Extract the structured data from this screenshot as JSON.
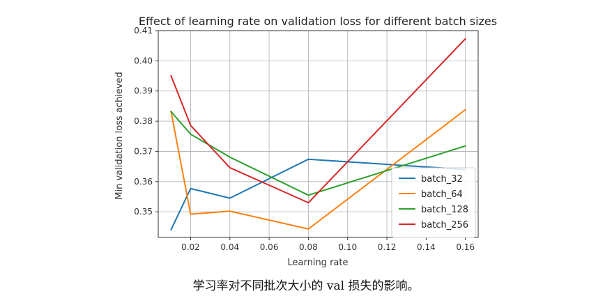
{
  "chart_data": {
    "type": "line",
    "title": "Effect of learning rate on validation loss for different batch sizes",
    "xlabel": "Learning rate",
    "ylabel": "Min validation loss achieved",
    "x": [
      0.01,
      0.02,
      0.04,
      0.08,
      0.16
    ],
    "xlim": [
      0.0035,
      0.1665
    ],
    "ylim": [
      0.3415,
      0.41
    ],
    "xticks": [
      0.02,
      0.04,
      0.06,
      0.08,
      0.1,
      0.12,
      0.14,
      0.16
    ],
    "xtick_labels": [
      "0.02",
      "0.04",
      "0.06",
      "0.08",
      "0.10",
      "0.12",
      "0.14",
      "0.16"
    ],
    "yticks": [
      0.35,
      0.36,
      0.37,
      0.38,
      0.39,
      0.4,
      0.41
    ],
    "ytick_labels": [
      "0.35",
      "0.36",
      "0.37",
      "0.38",
      "0.39",
      "0.40",
      "0.41"
    ],
    "grid": true,
    "legend_position": "lower-right",
    "series": [
      {
        "name": "batch_32",
        "color": "#1f77b4",
        "values": [
          0.344,
          0.3577,
          0.3545,
          0.3674,
          0.364
        ]
      },
      {
        "name": "batch_64",
        "color": "#ff7f0e",
        "values": [
          0.3833,
          0.3492,
          0.3502,
          0.3443,
          0.3838
        ]
      },
      {
        "name": "batch_128",
        "color": "#2ca02c",
        "values": [
          0.3832,
          0.3757,
          0.3681,
          0.3555,
          0.3718
        ]
      },
      {
        "name": "batch_256",
        "color": "#d62728",
        "values": [
          0.3951,
          0.3786,
          0.3646,
          0.353,
          0.4073
        ]
      }
    ]
  },
  "caption": "学习率对不同批次大小的 val 损失的影响。"
}
